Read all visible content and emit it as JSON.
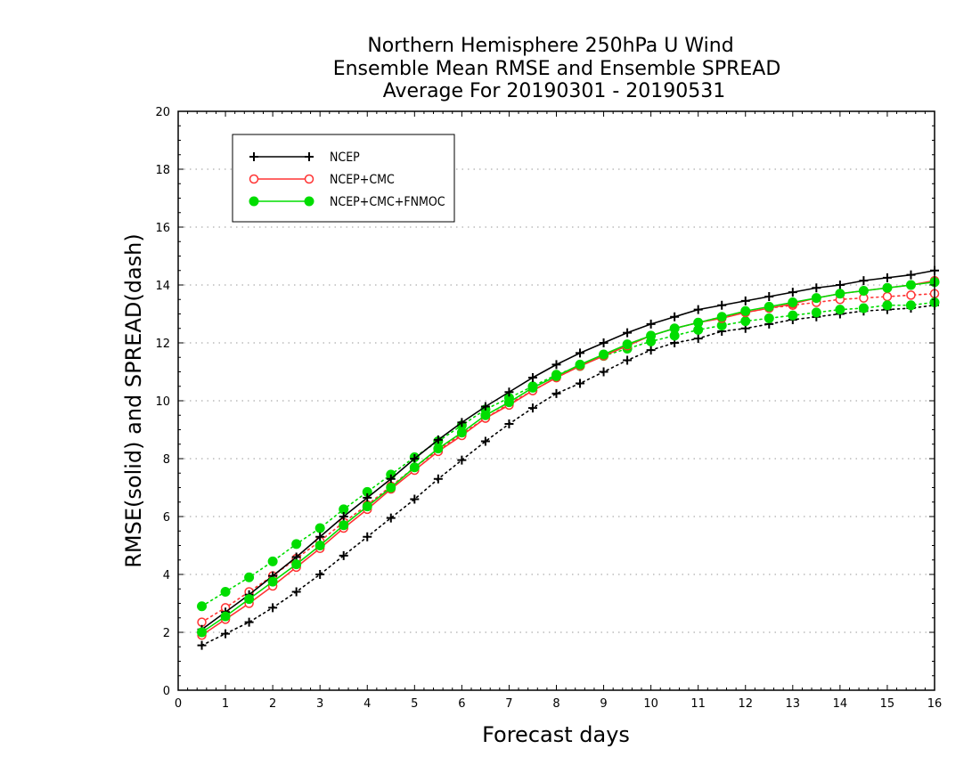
{
  "chart_data": {
    "type": "line",
    "title": [
      "Northern Hemisphere 250hPa U Wind",
      "Ensemble Mean RMSE and Ensemble SPREAD",
      "Average For 20190301 - 20190531"
    ],
    "xlabel": "Forecast days",
    "ylabel": "RMSE(solid) and SPREAD(dash)",
    "xlim": [
      0,
      16
    ],
    "ylim": [
      0,
      20
    ],
    "x_ticks": [
      0,
      1,
      2,
      3,
      4,
      5,
      6,
      7,
      8,
      9,
      10,
      11,
      12,
      13,
      14,
      15,
      16
    ],
    "y_ticks": [
      0,
      2,
      4,
      6,
      8,
      10,
      12,
      14,
      16,
      18,
      20
    ],
    "grid": "horizontal dotted",
    "legend_position": "top-left",
    "x": [
      0.5,
      1.0,
      1.5,
      2.0,
      2.5,
      3.0,
      3.5,
      4.0,
      4.5,
      5.0,
      5.5,
      6.0,
      6.5,
      7.0,
      7.5,
      8.0,
      8.5,
      9.0,
      9.5,
      10.0,
      10.5,
      11.0,
      11.5,
      12.0,
      12.5,
      13.0,
      13.5,
      14.0,
      14.5,
      15.0,
      15.5,
      16.0
    ],
    "series": [
      {
        "name": "NCEP",
        "color": "#000000",
        "marker": "plus",
        "rmse": [
          2.1,
          2.7,
          3.3,
          3.95,
          4.6,
          5.3,
          6.0,
          6.65,
          7.3,
          8.0,
          8.65,
          9.25,
          9.8,
          10.3,
          10.8,
          11.25,
          11.65,
          12.0,
          12.35,
          12.65,
          12.9,
          13.15,
          13.3,
          13.45,
          13.6,
          13.75,
          13.9,
          14.0,
          14.15,
          14.25,
          14.35,
          14.5
        ],
        "spread": [
          1.55,
          1.95,
          2.35,
          2.85,
          3.4,
          4.0,
          4.65,
          5.3,
          5.95,
          6.6,
          7.3,
          7.95,
          8.6,
          9.2,
          9.75,
          10.25,
          10.6,
          11.0,
          11.4,
          11.75,
          12.0,
          12.15,
          12.4,
          12.5,
          12.65,
          12.8,
          12.9,
          13.0,
          13.1,
          13.15,
          13.2,
          13.3
        ]
      },
      {
        "name": "NCEP+CMC",
        "color": "#ff3333",
        "marker": "open-circle",
        "rmse": [
          1.9,
          2.45,
          3.0,
          3.6,
          4.25,
          4.9,
          5.6,
          6.25,
          6.95,
          7.6,
          8.25,
          8.8,
          9.4,
          9.85,
          10.35,
          10.8,
          11.2,
          11.55,
          11.9,
          12.25,
          12.5,
          12.7,
          12.85,
          13.05,
          13.2,
          13.35,
          13.55,
          13.7,
          13.8,
          13.9,
          14.0,
          14.15
        ],
        "spread": [
          2.35,
          2.85,
          3.4,
          3.95,
          4.55,
          5.15,
          5.8,
          6.4,
          7.05,
          7.7,
          8.3,
          8.85,
          9.4,
          9.9,
          10.35,
          10.8,
          11.2,
          11.55,
          11.95,
          12.25,
          12.5,
          12.7,
          12.9,
          13.05,
          13.2,
          13.3,
          13.4,
          13.5,
          13.55,
          13.6,
          13.65,
          13.7
        ]
      },
      {
        "name": "NCEP+CMC+FNMOC",
        "color": "#00dd00",
        "marker": "filled-circle",
        "rmse": [
          2.0,
          2.55,
          3.15,
          3.75,
          4.35,
          5.0,
          5.7,
          6.35,
          7.0,
          7.7,
          8.35,
          8.9,
          9.5,
          9.95,
          10.45,
          10.85,
          11.25,
          11.6,
          11.95,
          12.25,
          12.5,
          12.7,
          12.9,
          13.1,
          13.25,
          13.4,
          13.55,
          13.7,
          13.8,
          13.9,
          14.0,
          14.1
        ],
        "spread": [
          2.9,
          3.4,
          3.9,
          4.45,
          5.05,
          5.6,
          6.25,
          6.85,
          7.45,
          8.05,
          8.6,
          9.15,
          9.7,
          10.1,
          10.5,
          10.9,
          11.2,
          11.55,
          11.8,
          12.05,
          12.25,
          12.45,
          12.6,
          12.75,
          12.85,
          12.95,
          13.05,
          13.15,
          13.2,
          13.3,
          13.3,
          13.4
        ]
      }
    ]
  }
}
